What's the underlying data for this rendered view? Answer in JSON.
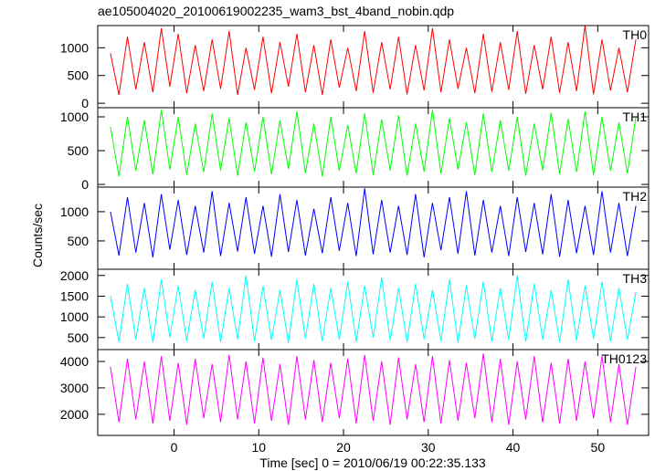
{
  "chart_data": {
    "type": "line",
    "title": "ae105004020_20100619002235_wam3_bst_4band_nobin.qdp",
    "xlabel": "Time [sec] 0 = 2010/06/19 00:22:35.133",
    "ylabel": "Counts/sec",
    "x": [
      -7.5,
      -6.5,
      -5.5,
      -4.5,
      -3.5,
      -2.5,
      -1.5,
      -0.5,
      0.5,
      1.5,
      2.5,
      3.5,
      4.5,
      5.5,
      6.5,
      7.5,
      8.5,
      9.5,
      10.5,
      11.5,
      12.5,
      13.5,
      14.5,
      15.5,
      16.5,
      17.5,
      18.5,
      19.5,
      20.5,
      21.5,
      22.5,
      23.5,
      24.5,
      25.5,
      26.5,
      27.5,
      28.5,
      29.5,
      30.5,
      31.5,
      32.5,
      33.5,
      34.5,
      35.5,
      36.5,
      37.5,
      38.5,
      39.5,
      40.5,
      41.5,
      42.5,
      43.5,
      44.5,
      45.5,
      46.5,
      47.5,
      48.5,
      49.5,
      50.5,
      51.5,
      52.5,
      53.5,
      54.5
    ],
    "xlim": [
      -9,
      56
    ],
    "xticks": [
      0,
      10,
      20,
      30,
      40,
      50
    ],
    "series": [
      {
        "name": "TH0",
        "color": "#ff0000",
        "ylim": [
          -80,
          1400
        ],
        "yticks": [
          0,
          500,
          1000
        ],
        "values": [
          900,
          150,
          1200,
          250,
          1100,
          200,
          1350,
          300,
          1250,
          180,
          1050,
          220,
          1150,
          260,
          1300,
          150,
          1000,
          240,
          1200,
          180,
          1100,
          300,
          1250,
          200,
          1050,
          150,
          1150,
          280,
          1000,
          220,
          1300,
          190,
          1100,
          250,
          1200,
          160,
          1050,
          230,
          1350,
          200,
          1150,
          260,
          1000,
          180,
          1250,
          210,
          1100,
          240,
          1300,
          170,
          1050,
          250,
          1200,
          190,
          1100,
          220,
          1400,
          160,
          1150,
          230,
          1000,
          200,
          1150
        ]
      },
      {
        "name": "TH1",
        "color": "#00ff00",
        "ylim": [
          -40,
          1135
        ],
        "yticks": [
          0,
          500,
          1000
        ],
        "values": [
          850,
          120,
          1000,
          200,
          950,
          150,
          1100,
          220,
          1000,
          140,
          900,
          180,
          1050,
          210,
          980,
          130,
          920,
          190,
          1000,
          150,
          950,
          230,
          1080,
          170,
          900,
          120,
          1000,
          200,
          880,
          160,
          1050,
          140,
          960,
          210,
          1020,
          130,
          900,
          190,
          1100,
          160,
          980,
          220,
          920,
          140,
          1050,
          180,
          950,
          200,
          1000,
          130,
          900,
          210,
          1060,
          150,
          970,
          180,
          1080,
          140,
          1000,
          200,
          920,
          160,
          1000
        ]
      },
      {
        "name": "TH2",
        "color": "#0000ff",
        "ylim": [
          15,
          1420
        ],
        "yticks": [
          500,
          1000
        ],
        "values": [
          1000,
          250,
          1250,
          300,
          1150,
          220,
          1300,
          350,
          1200,
          260,
          1100,
          300,
          1350,
          240,
          1150,
          320,
          1250,
          280,
          1100,
          230,
          1300,
          310,
          1200,
          250,
          1050,
          290,
          1250,
          330,
          1150,
          240,
          1400,
          270,
          1200,
          300,
          1100,
          260,
          1300,
          220,
          1150,
          340,
          1250,
          280,
          1350,
          250,
          1200,
          300,
          1100,
          240,
          1250,
          310,
          1150,
          270,
          1300,
          230,
          1200,
          290,
          1100,
          260,
          1350,
          300,
          1150,
          240,
          1100
        ]
      },
      {
        "name": "TH3",
        "color": "#00ffff",
        "ylim": [
          210,
          2150
        ],
        "yticks": [
          500,
          1000,
          1500,
          2000
        ],
        "values": [
          1500,
          400,
          1800,
          450,
          1700,
          380,
          1900,
          500,
          1750,
          420,
          1650,
          480,
          1850,
          390,
          1700,
          460,
          2000,
          410,
          1750,
          440,
          1650,
          370,
          1900,
          480,
          1800,
          420,
          1700,
          450,
          1850,
          400,
          1750,
          500,
          1950,
          430,
          1700,
          390,
          1800,
          460,
          1650,
          420,
          1900,
          380,
          1750,
          470,
          1850,
          410,
          1700,
          440,
          2000,
          400,
          1800,
          450,
          1650,
          390,
          1900,
          430,
          1750,
          470,
          1850,
          410,
          1700,
          450,
          1600
        ]
      },
      {
        "name": "TH0123",
        "color": "#ff00ff",
        "ylim": [
          1200,
          4450
        ],
        "yticks": [
          2000,
          3000,
          4000
        ],
        "values": [
          3800,
          1700,
          4100,
          1800,
          4000,
          1650,
          4200,
          1750,
          3950,
          1600,
          4100,
          1850,
          3900,
          1700,
          4250,
          1800,
          4000,
          1650,
          4150,
          1750,
          3900,
          1600,
          4200,
          1800,
          4050,
          1700,
          3950,
          1850,
          4100,
          1650,
          4250,
          1750,
          4000,
          1600,
          4150,
          1800,
          3900,
          1700,
          4200,
          1650,
          4050,
          1750,
          3950,
          1850,
          4300,
          1700,
          4100,
          1600,
          4000,
          1800,
          4200,
          1700,
          3950,
          1650,
          4100,
          1750,
          4000,
          1850,
          4200,
          1700,
          3900,
          1600,
          3800
        ]
      }
    ]
  }
}
